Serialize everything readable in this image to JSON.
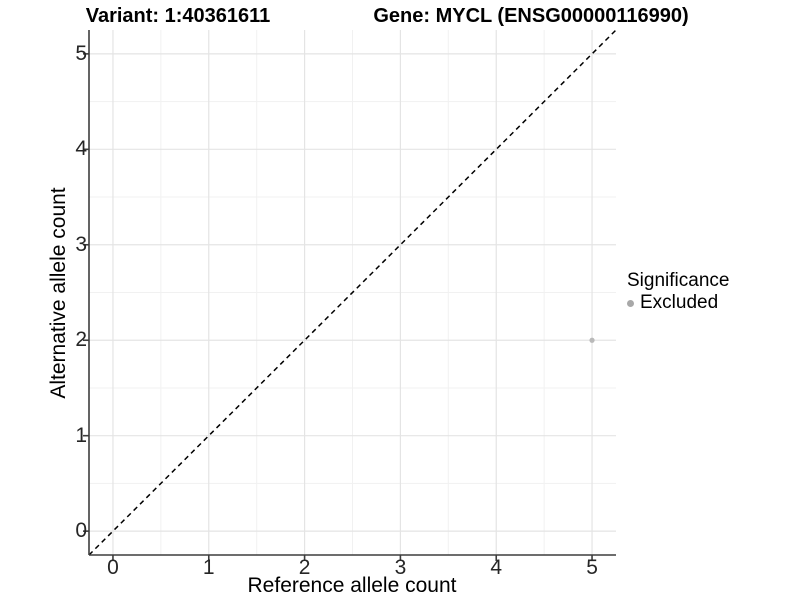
{
  "titles": {
    "variant": "Variant: 1:40361611",
    "gene": "Gene: MYCL (ENSG00000116990)"
  },
  "legend": {
    "title": "Significance",
    "position": "right",
    "items": [
      {
        "label": "Excluded",
        "swatch_color": "#a8a8a8",
        "shape": "circle"
      }
    ]
  },
  "chart_data": {
    "type": "scatter",
    "title_left": "Variant: 1:40361611",
    "title_right": "Gene: MYCL (ENSG00000116990)",
    "xlabel": "Reference allele count",
    "ylabel": "Alternative allele count",
    "xlim": [
      -0.25,
      5.25
    ],
    "ylim": [
      -0.25,
      5.25
    ],
    "x_ticks": [
      0,
      1,
      2,
      3,
      4,
      5
    ],
    "y_ticks": [
      0,
      1,
      2,
      3,
      4,
      5
    ],
    "grid": true,
    "grid_minor": true,
    "legend_position": "right",
    "series": [
      {
        "name": "Excluded",
        "color": "#b9b9b9",
        "point_radius": 2.6,
        "points": [
          {
            "x": 5,
            "y": 2
          }
        ]
      }
    ],
    "reference_line": {
      "type": "abline",
      "slope": 1,
      "intercept": 0,
      "style": "dashed",
      "color": "#000000"
    },
    "colors": {
      "grid_major": "#e4e4e4",
      "grid_minor": "#f1f1f1",
      "axis_line": "#3d3d3d",
      "background": "#ffffff"
    }
  }
}
